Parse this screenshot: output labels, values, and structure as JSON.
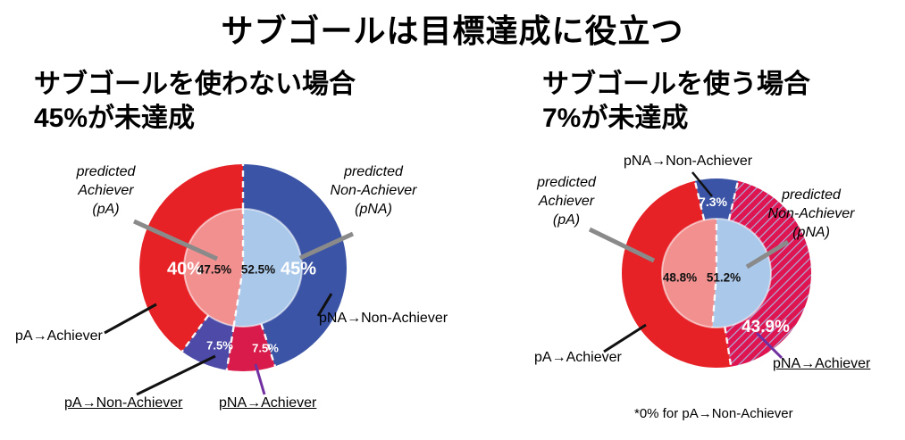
{
  "title": "サブゴールは目標達成に役立つ",
  "panels": {
    "left": {
      "heading_line1": "サブゴールを使わない場合",
      "heading_line2": "45%が未達成"
    },
    "right": {
      "heading_line1": "サブゴールを使う場合",
      "heading_line2": "7%が未達成"
    }
  },
  "chart_data": [
    {
      "type": "pie",
      "variant": "donut-ring-with-inner-pie",
      "title": "サブゴールを使わない場合 45%が未達成",
      "start_angle_deg": 0,
      "direction": "clockwise",
      "outer_ring": [
        {
          "name": "pNA→Non-Achiever",
          "value_pct": 45,
          "label": "45%",
          "color": "#3b54a5"
        },
        {
          "name": "pNA→Achiever",
          "value_pct": 7.5,
          "label": "7.5%",
          "color": "#d81b4a"
        },
        {
          "name": "pA→Non-Achiever",
          "value_pct": 7.5,
          "label": "7.5%",
          "color": "#4d4aa8"
        },
        {
          "name": "pA→Achiever",
          "value_pct": 40,
          "label": "40%",
          "color": "#e62227"
        }
      ],
      "inner_pie": [
        {
          "name": "predicted Non-Achiever (pNA)",
          "value_pct": 52.5,
          "label": "52.5%",
          "color": "#a9c8ea"
        },
        {
          "name": "predicted Achiever (pA)",
          "value_pct": 47.5,
          "label": "47.5%",
          "color": "#f1908f"
        }
      ],
      "callouts": {
        "predicted_achiever": [
          "predicted",
          "Achiever",
          "(pA)"
        ],
        "predicted_non_achiever": [
          "predicted",
          "Non-Achiever",
          "(pNA)"
        ],
        "pa_achiever": "pA→Achiever",
        "pna_non_achiever": "pNA→Non-Achiever",
        "pa_non_achiever": "pA→Non-Achiever",
        "pna_achiever": "pNA→Achiever"
      }
    },
    {
      "type": "pie",
      "variant": "donut-ring-with-inner-pie",
      "title": "サブゴールを使う場合 7%が未達成",
      "start_angle_deg": 0,
      "direction": "clockwise",
      "outer_ring": [
        {
          "name": "pNA→Non-Achiever",
          "value_pct": 7.3,
          "label": "7.3%",
          "color": "#3b54a5"
        },
        {
          "name": "pNA→Achiever",
          "value_pct": 43.9,
          "label": "43.9%",
          "color": "#de1550",
          "hatch": true
        },
        {
          "name": "pA→Achiever",
          "value_pct": 48.8,
          "label": "",
          "color": "#e62227"
        }
      ],
      "inner_pie": [
        {
          "name": "predicted Non-Achiever (pNA)",
          "value_pct": 51.2,
          "label": "51.2%",
          "color": "#a9c8ea"
        },
        {
          "name": "predicted Achiever (pA)",
          "value_pct": 48.8,
          "label": "48.8%",
          "color": "#f1908f"
        }
      ],
      "callouts": {
        "pna_non_achiever": "pNA→Non-Achiever",
        "predicted_achiever": [
          "predicted",
          "Achiever",
          "(pA)"
        ],
        "predicted_non_achiever": [
          "predicted",
          "Non-Achiever",
          "(pNA)"
        ],
        "pa_achiever": "pA→Achiever",
        "pna_achiever": "pNA→Achiever",
        "footnote": "*0% for pA→Non-Achiever"
      }
    }
  ],
  "colors": {
    "achieved_red": "#e62227",
    "non_achieved_blue": "#3b54a5",
    "pa_non_achiever_indigo": "#4d4aa8",
    "pna_achiever_crimson": "#d81b4a",
    "inner_pa_light_red": "#f1908f",
    "inner_pna_light_blue": "#a9c8ea",
    "leader_gray": "#8a8a8a",
    "leader_purple": "#7030a0"
  }
}
